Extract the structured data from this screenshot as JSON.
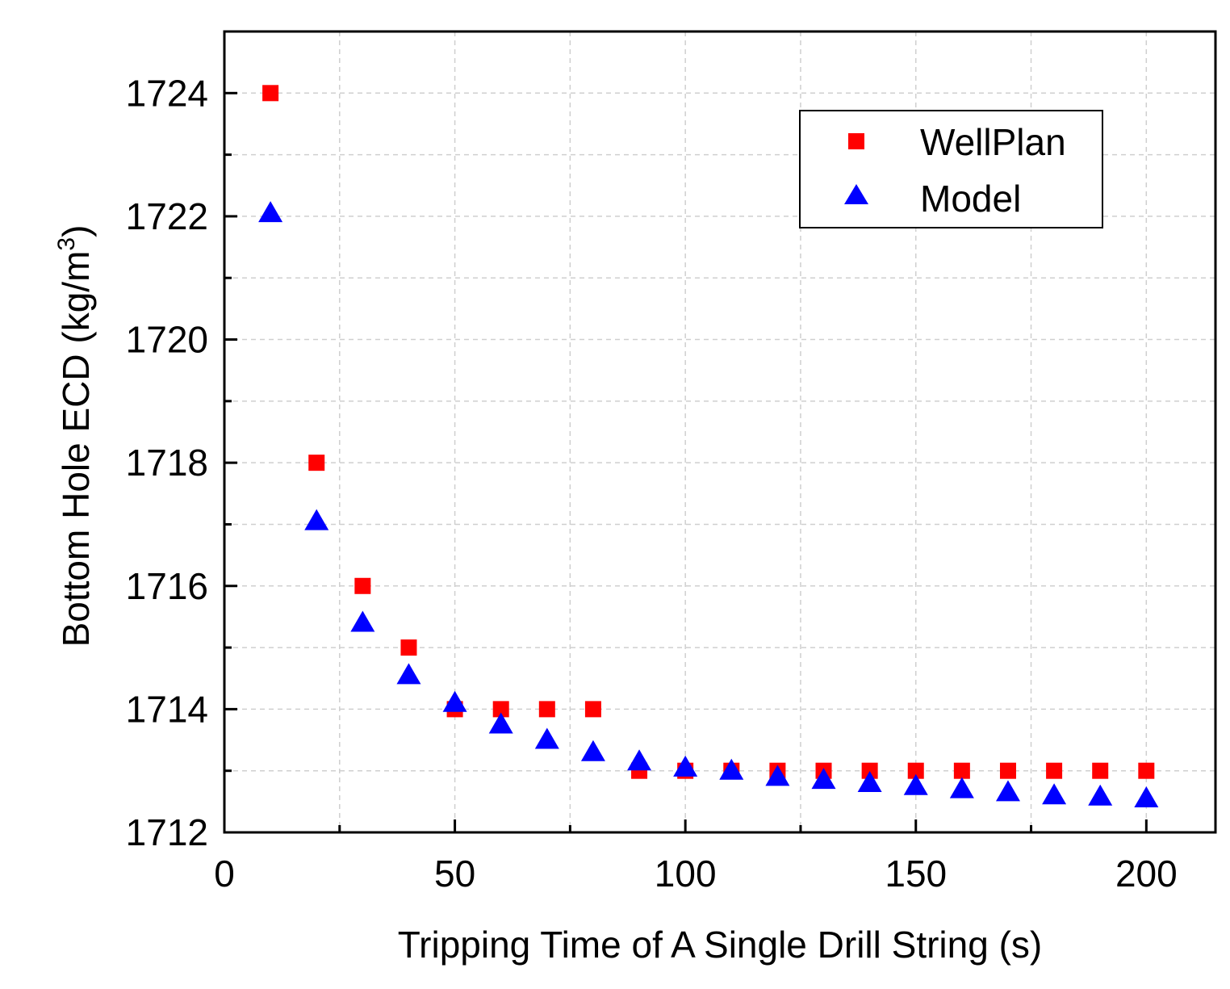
{
  "chart_data": {
    "type": "scatter",
    "title": "",
    "xlabel": "Tripping Time of A Single Drill String (s)",
    "ylabel_main": "Bottom Hole ECD (kg/m",
    "ylabel_sup": "3",
    "ylabel_end": ")",
    "xlim": [
      0,
      215
    ],
    "ylim": [
      1712,
      1725
    ],
    "xticks": [
      0,
      50,
      100,
      150,
      200
    ],
    "xticks_minor": [
      25,
      75,
      125,
      175
    ],
    "yticks": [
      1712,
      1714,
      1716,
      1718,
      1720,
      1722,
      1724
    ],
    "yticks_minor": [
      1713,
      1715,
      1717,
      1719,
      1721,
      1723
    ],
    "grid": true,
    "legend_position": "top-right",
    "series": [
      {
        "name": "WellPlan",
        "marker": "square",
        "color": "#ff0000",
        "x": [
          10,
          20,
          30,
          40,
          50,
          60,
          70,
          80,
          90,
          100,
          110,
          120,
          130,
          140,
          150,
          160,
          170,
          180,
          190,
          200
        ],
        "y": [
          1724,
          1718,
          1716,
          1715,
          1714,
          1714,
          1714,
          1714,
          1713,
          1713,
          1713,
          1713,
          1713,
          1713,
          1713,
          1713,
          1713,
          1713,
          1713,
          1713
        ]
      },
      {
        "name": "Model",
        "marker": "triangle",
        "color": "#0000ff",
        "x": [
          10,
          20,
          30,
          40,
          50,
          60,
          70,
          80,
          90,
          100,
          110,
          120,
          130,
          140,
          150,
          160,
          170,
          180,
          190,
          200
        ],
        "y": [
          1722.05,
          1717.05,
          1715.4,
          1714.55,
          1714.1,
          1713.75,
          1713.5,
          1713.3,
          1713.15,
          1713.05,
          1713.0,
          1712.9,
          1712.85,
          1712.8,
          1712.75,
          1712.7,
          1712.65,
          1712.6,
          1712.58,
          1712.55
        ]
      }
    ]
  }
}
